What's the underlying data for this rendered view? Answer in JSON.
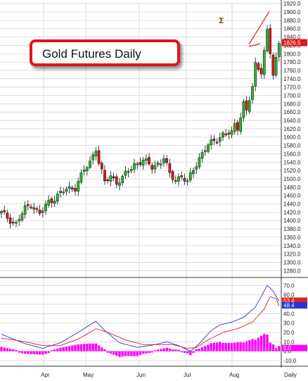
{
  "chart_data": [
    {
      "type": "candlestick",
      "title": "Gold Futures Daily",
      "period_label": "Daily",
      "last_price": "1826.5",
      "x_tick_labels": [
        "Apr",
        "May",
        "Jun",
        "Jul",
        "Aug"
      ],
      "y_tick_labels": [
        "1280.0",
        "1300.0",
        "1320.0",
        "1340.0",
        "1360.0",
        "1380.0",
        "1400.0",
        "1420.0",
        "1440.0",
        "1460.0",
        "1480.0",
        "1500.0",
        "1520.0",
        "1540.0",
        "1560.0",
        "1580.0",
        "1600.0",
        "1620.0",
        "1640.0",
        "1660.0",
        "1680.0",
        "1700.0",
        "1720.0",
        "1740.0",
        "1760.0",
        "1780.0",
        "1800.0",
        "1820.0",
        "1840.0",
        "1860.0",
        "1880.0",
        "1900.0",
        "1920.0"
      ],
      "ylim": [
        1267,
        1922
      ],
      "grid": true,
      "colors": {
        "up": "#2db52d",
        "down": "#d81919",
        "outline": "#111111",
        "grid": "#d4d4d4",
        "last_price_box": "#e0141c"
      },
      "close_anchors": [
        [
          0,
          1418
        ],
        [
          5,
          1392
        ],
        [
          8,
          1428
        ],
        [
          10,
          1440
        ],
        [
          13,
          1415
        ],
        [
          16,
          1445
        ],
        [
          19,
          1460
        ],
        [
          22,
          1475
        ],
        [
          25,
          1480
        ],
        [
          28,
          1520
        ],
        [
          30,
          1540
        ],
        [
          32,
          1575
        ],
        [
          33,
          1540
        ],
        [
          35,
          1490
        ],
        [
          37,
          1508
        ],
        [
          39,
          1492
        ],
        [
          41,
          1500
        ],
        [
          43,
          1520
        ],
        [
          45,
          1535
        ],
        [
          48,
          1543
        ],
        [
          51,
          1530
        ],
        [
          54,
          1540
        ],
        [
          55,
          1550
        ],
        [
          57,
          1510
        ],
        [
          59,
          1500
        ],
        [
          61,
          1505
        ],
        [
          63,
          1490
        ],
        [
          65,
          1525
        ],
        [
          67,
          1550
        ],
        [
          70,
          1580
        ],
        [
          73,
          1598
        ],
        [
          75,
          1605
        ],
        [
          78,
          1610
        ],
        [
          79,
          1630
        ],
        [
          80,
          1625
        ],
        [
          82,
          1680
        ],
        [
          83,
          1660
        ],
        [
          85,
          1720
        ],
        [
          86,
          1775
        ],
        [
          88,
          1760
        ],
        [
          90,
          1850
        ],
        [
          92,
          1750
        ],
        [
          94,
          1826
        ]
      ],
      "annotations": [
        "Σ"
      ]
    },
    {
      "type": "macd",
      "y_tick_labels": [
        "70.0",
        "60.0",
        "50.0",
        "40.0",
        "30.0",
        "20.0",
        "10.0",
        "0.0",
        "-10.0"
      ],
      "ylim": [
        -16,
        74
      ],
      "last_values": [
        "53.4",
        "48.4",
        "5.0"
      ],
      "series": [
        {
          "color": "#2233dd",
          "anchors": [
            [
              0,
              18
            ],
            [
              8,
              8
            ],
            [
              14,
              3
            ],
            [
              20,
              9
            ],
            [
              26,
              20
            ],
            [
              30,
              28
            ],
            [
              32,
              32
            ],
            [
              35,
              22
            ],
            [
              40,
              9
            ],
            [
              46,
              4
            ],
            [
              52,
              7
            ],
            [
              56,
              10
            ],
            [
              60,
              6
            ],
            [
              64,
              0
            ],
            [
              67,
              8
            ],
            [
              71,
              22
            ],
            [
              74,
              28
            ],
            [
              78,
              31
            ],
            [
              82,
              36
            ],
            [
              86,
              47
            ],
            [
              90,
              70
            ],
            [
              92,
              64
            ],
            [
              94,
              53
            ]
          ]
        },
        {
          "color": "#dd2222",
          "anchors": [
            [
              0,
              14
            ],
            [
              8,
              10
            ],
            [
              14,
              6
            ],
            [
              20,
              6
            ],
            [
              26,
              13
            ],
            [
              30,
              20
            ],
            [
              32,
              24
            ],
            [
              36,
              20
            ],
            [
              42,
              12
            ],
            [
              48,
              7
            ],
            [
              54,
              7
            ],
            [
              58,
              7
            ],
            [
              63,
              3
            ],
            [
              66,
              4
            ],
            [
              70,
              12
            ],
            [
              75,
              20
            ],
            [
              80,
              24
            ],
            [
              85,
              31
            ],
            [
              89,
              45
            ],
            [
              91,
              58
            ],
            [
              93,
              56
            ],
            [
              94,
              48
            ]
          ]
        }
      ],
      "histogram_color": "#ff00ff"
    }
  ]
}
